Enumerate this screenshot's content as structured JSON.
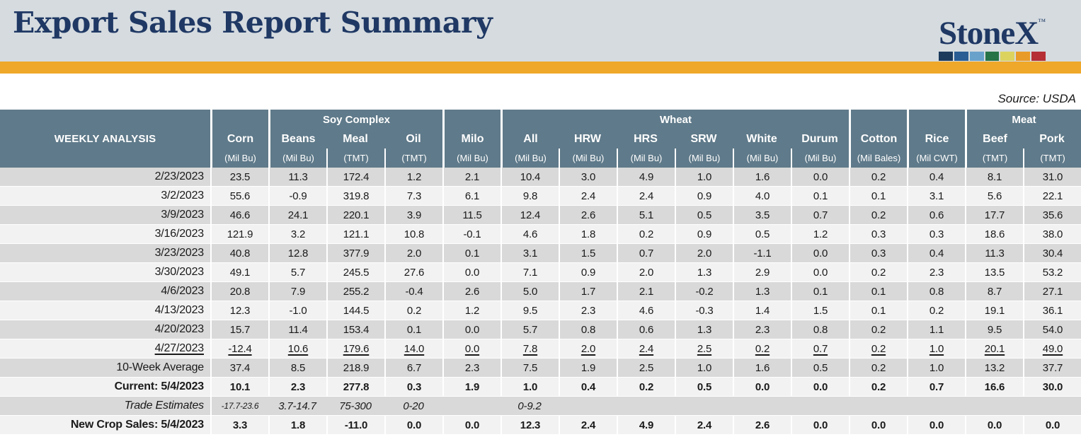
{
  "masthead": {
    "title": "Export Sales Report Summary",
    "title_color": "#1f3864",
    "background": "#d5dbdf",
    "accent_bar_color": "#efa82a",
    "logo": {
      "text": "StoneX",
      "tm": "™",
      "bar_colors": [
        "#1c3a5c",
        "#2a5d94",
        "#68a2cb",
        "#267347",
        "#dcd35f",
        "#e99b27",
        "#b52f35"
      ]
    }
  },
  "source_note": "Source: USDA",
  "table": {
    "header_bg": "#5f7a8a",
    "row_stripe_colors": [
      "#d9d9d9",
      "#f2f2f2"
    ],
    "corner_label": "WEEKLY ANALYSIS",
    "group_cells": [
      {
        "label": "",
        "span": 1
      },
      {
        "label": "Soy Complex",
        "span": 3
      },
      {
        "label": "",
        "span": 1
      },
      {
        "label": "Wheat",
        "span": 6
      },
      {
        "label": "",
        "span": 1
      },
      {
        "label": "",
        "span": 1
      },
      {
        "label": "Meat",
        "span": 2
      }
    ],
    "columns": [
      {
        "key": "corn",
        "name": "Corn",
        "unit": "(Mil Bu)",
        "group_start": true
      },
      {
        "key": "beans",
        "name": "Beans",
        "unit": "(Mil Bu)",
        "group_start": true
      },
      {
        "key": "meal",
        "name": "Meal",
        "unit": "(TMT)",
        "group_start": false
      },
      {
        "key": "oil",
        "name": "Oil",
        "unit": "(TMT)",
        "group_start": false
      },
      {
        "key": "milo",
        "name": "Milo",
        "unit": "(Mil Bu)",
        "group_start": true
      },
      {
        "key": "all",
        "name": "All",
        "unit": "(Mil Bu)",
        "group_start": true
      },
      {
        "key": "hrw",
        "name": "HRW",
        "unit": "(Mil Bu)",
        "group_start": false
      },
      {
        "key": "hrs",
        "name": "HRS",
        "unit": "(Mil Bu)",
        "group_start": false
      },
      {
        "key": "srw",
        "name": "SRW",
        "unit": "(Mil Bu)",
        "group_start": false
      },
      {
        "key": "white",
        "name": "White",
        "unit": "(Mil Bu)",
        "group_start": false
      },
      {
        "key": "durum",
        "name": "Durum",
        "unit": "(Mil Bu)",
        "group_start": false
      },
      {
        "key": "cotton",
        "name": "Cotton",
        "unit": "(Mil Bales)",
        "group_start": true
      },
      {
        "key": "rice",
        "name": "Rice",
        "unit": "(Mil CWT)",
        "group_start": true
      },
      {
        "key": "beef",
        "name": "Beef",
        "unit": "(TMT)",
        "group_start": true
      },
      {
        "key": "pork",
        "name": "Pork",
        "unit": "(TMT)",
        "group_start": false
      }
    ],
    "rows": [
      {
        "label": "2/23/2023",
        "style": "normal",
        "values": [
          "23.5",
          "11.3",
          "172.4",
          "1.2",
          "2.1",
          "10.4",
          "3.0",
          "4.9",
          "1.0",
          "1.6",
          "0.0",
          "0.2",
          "0.4",
          "8.1",
          "31.0"
        ]
      },
      {
        "label": "3/2/2023",
        "style": "normal",
        "values": [
          "55.6",
          "-0.9",
          "319.8",
          "7.3",
          "6.1",
          "9.8",
          "2.4",
          "2.4",
          "0.9",
          "4.0",
          "0.1",
          "0.1",
          "3.1",
          "5.6",
          "22.1"
        ]
      },
      {
        "label": "3/9/2023",
        "style": "normal",
        "values": [
          "46.6",
          "24.1",
          "220.1",
          "3.9",
          "11.5",
          "12.4",
          "2.6",
          "5.1",
          "0.5",
          "3.5",
          "0.7",
          "0.2",
          "0.6",
          "17.7",
          "35.6"
        ]
      },
      {
        "label": "3/16/2023",
        "style": "normal",
        "values": [
          "121.9",
          "3.2",
          "121.1",
          "10.8",
          "-0.1",
          "4.6",
          "1.8",
          "0.2",
          "0.9",
          "0.5",
          "1.2",
          "0.3",
          "0.3",
          "18.6",
          "38.0"
        ]
      },
      {
        "label": "3/23/2023",
        "style": "normal",
        "values": [
          "40.8",
          "12.8",
          "377.9",
          "2.0",
          "0.1",
          "3.1",
          "1.5",
          "0.7",
          "2.0",
          "-1.1",
          "0.0",
          "0.3",
          "0.4",
          "11.3",
          "30.4"
        ]
      },
      {
        "label": "3/30/2023",
        "style": "normal",
        "values": [
          "49.1",
          "5.7",
          "245.5",
          "27.6",
          "0.0",
          "7.1",
          "0.9",
          "2.0",
          "1.3",
          "2.9",
          "0.0",
          "0.2",
          "2.3",
          "13.5",
          "53.2"
        ]
      },
      {
        "label": "4/6/2023",
        "style": "normal",
        "values": [
          "20.8",
          "7.9",
          "255.2",
          "-0.4",
          "2.6",
          "5.0",
          "1.7",
          "2.1",
          "-0.2",
          "1.3",
          "0.1",
          "0.1",
          "0.8",
          "8.7",
          "27.1"
        ]
      },
      {
        "label": "4/13/2023",
        "style": "normal",
        "values": [
          "12.3",
          "-1.0",
          "144.5",
          "0.2",
          "1.2",
          "9.5",
          "2.3",
          "4.6",
          "-0.3",
          "1.4",
          "1.5",
          "0.1",
          "0.2",
          "19.1",
          "36.1"
        ]
      },
      {
        "label": "4/20/2023",
        "style": "normal",
        "values": [
          "15.7",
          "11.4",
          "153.4",
          "0.1",
          "0.0",
          "5.7",
          "0.8",
          "0.6",
          "1.3",
          "2.3",
          "0.8",
          "0.2",
          "1.1",
          "9.5",
          "54.0"
        ]
      },
      {
        "label": "4/27/2023",
        "style": "underline",
        "values": [
          "-12.4",
          "10.6",
          "179.6",
          "14.0",
          "0.0",
          "7.8",
          "2.0",
          "2.4",
          "2.5",
          "0.2",
          "0.7",
          "0.2",
          "1.0",
          "20.1",
          "49.0"
        ]
      },
      {
        "label": "10-Week Average",
        "style": "normal",
        "values": [
          "37.4",
          "8.5",
          "218.9",
          "6.7",
          "2.3",
          "7.5",
          "1.9",
          "2.5",
          "1.0",
          "1.6",
          "0.5",
          "0.2",
          "1.0",
          "13.2",
          "37.7"
        ]
      },
      {
        "label": "Current: 5/4/2023",
        "style": "bold",
        "values": [
          "10.1",
          "2.3",
          "277.8",
          "0.3",
          "1.9",
          "1.0",
          "0.4",
          "0.2",
          "0.5",
          "0.0",
          "0.0",
          "0.2",
          "0.7",
          "16.6",
          "30.0"
        ]
      },
      {
        "label": "Trade Estimates",
        "style": "trade",
        "values": [
          "-17.7-23.6",
          "3.7-14.7",
          "75-300",
          "0-20",
          "",
          "0-9.2",
          "",
          "",
          "",
          "",
          "",
          "",
          "",
          "",
          ""
        ]
      },
      {
        "label": "New Crop Sales: 5/4/2023",
        "style": "bold",
        "values": [
          "3.3",
          "1.8",
          "-11.0",
          "0.0",
          "0.0",
          "12.3",
          "2.4",
          "4.9",
          "2.4",
          "2.6",
          "0.0",
          "0.0",
          "0.0",
          "0.0",
          "0.0"
        ]
      }
    ]
  }
}
